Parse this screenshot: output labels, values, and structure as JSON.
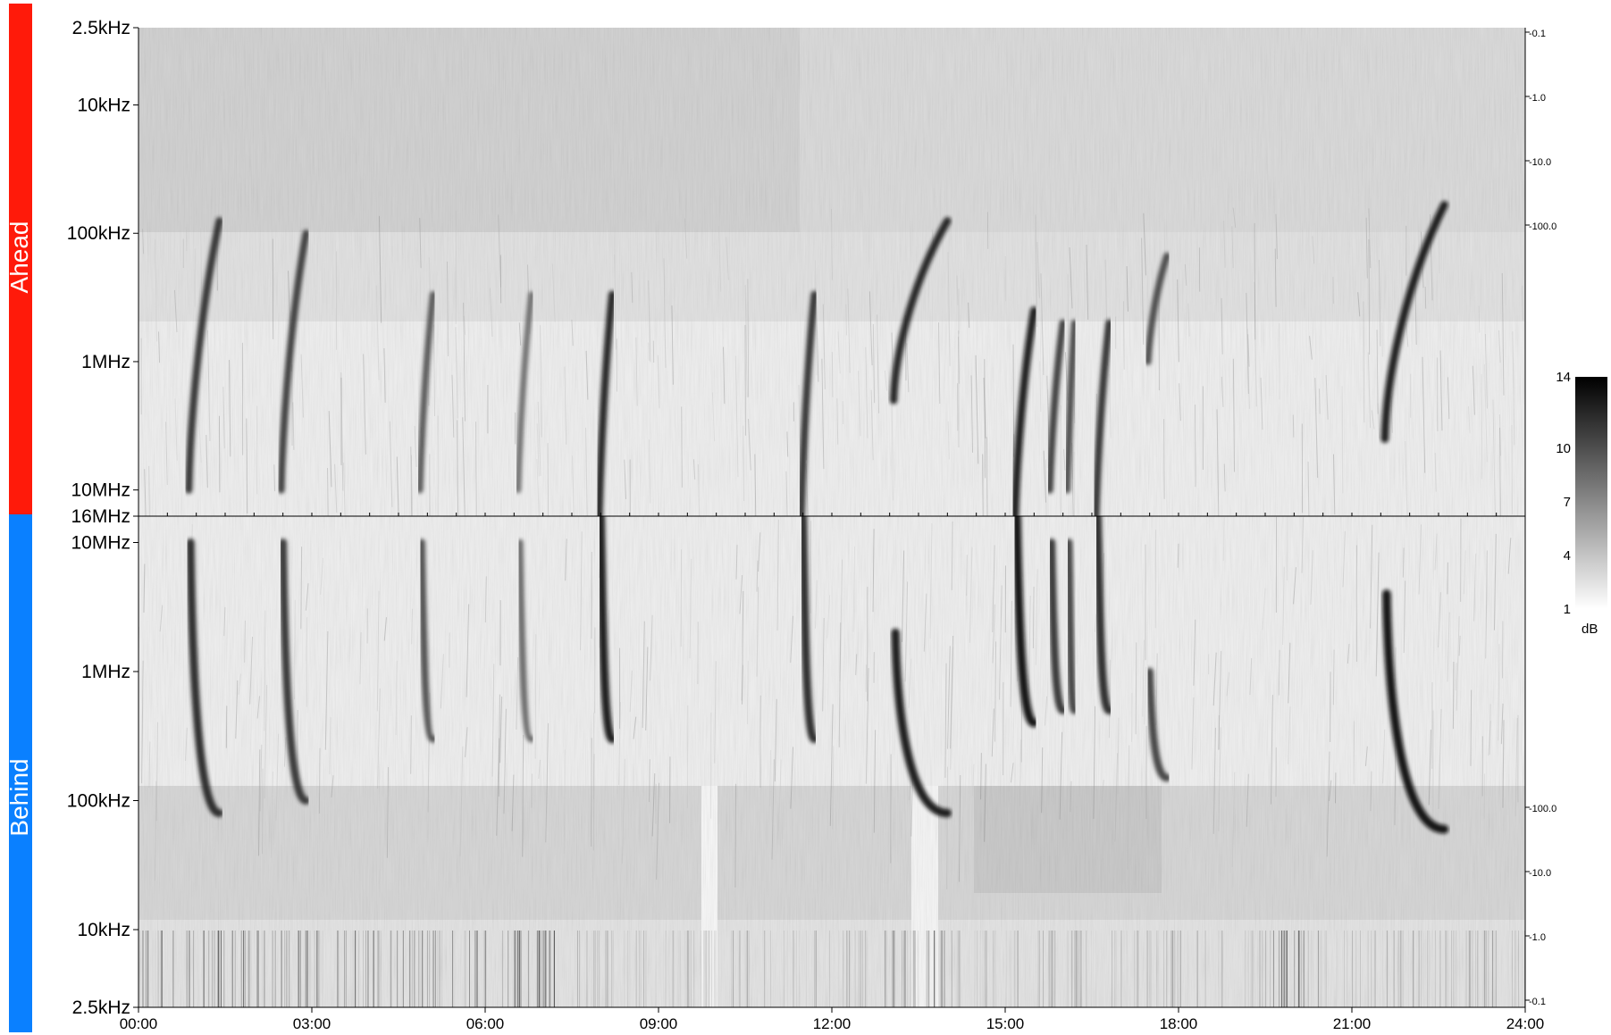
{
  "chart_data": {
    "type": "heatmap",
    "panels": [
      {
        "title": "Ahead",
        "color": "#ff1a0a",
        "y_ticks": [
          "2.5kHz",
          "10kHz",
          "100kHz",
          "1MHz",
          "10MHz",
          "16MHz"
        ],
        "y_ticks_right": [
          "-0.1",
          "-1.0",
          "-10.0",
          "-100.0"
        ]
      },
      {
        "title": "Behind",
        "color": "#0a80ff",
        "y_ticks": [
          "10MHz",
          "1MHz",
          "100kHz",
          "10kHz",
          "2.5kHz"
        ],
        "y_ticks_right": [
          "-100.0",
          "-10.0",
          "-1.0",
          "-0.1"
        ]
      }
    ],
    "x_ticks": [
      "00:00",
      "03:00",
      "06:00",
      "09:00",
      "12:00",
      "15:00",
      "18:00",
      "21:00",
      "24:00"
    ],
    "x_range_hours": [
      0,
      24
    ],
    "colorbar": {
      "ticks": [
        "14",
        "10",
        "7",
        "4",
        "1"
      ],
      "unit": "dB",
      "range": [
        1,
        14
      ],
      "cmap": [
        "#ffffff",
        "#000000"
      ]
    },
    "bursts": [
      {
        "t_start": 0.9,
        "t_end": 1.4,
        "f_start_mhz": 10,
        "f_end_mhz": 0.08,
        "intensity": 0.85
      },
      {
        "t_start": 2.5,
        "t_end": 2.9,
        "f_start_mhz": 10,
        "f_end_mhz": 0.1,
        "intensity": 0.8
      },
      {
        "t_start": 4.9,
        "t_end": 5.1,
        "f_start_mhz": 10,
        "f_end_mhz": 0.3,
        "intensity": 0.7
      },
      {
        "t_start": 6.6,
        "t_end": 6.8,
        "f_start_mhz": 10,
        "f_end_mhz": 0.3,
        "intensity": 0.6
      },
      {
        "t_start": 8.0,
        "t_end": 8.2,
        "f_start_mhz": 16,
        "f_end_mhz": 0.3,
        "intensity": 0.9
      },
      {
        "t_start": 11.5,
        "t_end": 11.7,
        "f_start_mhz": 16,
        "f_end_mhz": 0.3,
        "intensity": 0.85
      },
      {
        "t_start": 13.1,
        "t_end": 14.0,
        "f_start_mhz": 2,
        "f_end_mhz": 0.08,
        "intensity": 0.9
      },
      {
        "t_start": 15.2,
        "t_end": 15.5,
        "f_start_mhz": 16,
        "f_end_mhz": 0.4,
        "intensity": 0.95
      },
      {
        "t_start": 15.8,
        "t_end": 16.0,
        "f_start_mhz": 10,
        "f_end_mhz": 0.5,
        "intensity": 0.8
      },
      {
        "t_start": 16.1,
        "t_end": 16.2,
        "f_start_mhz": 10,
        "f_end_mhz": 0.5,
        "intensity": 0.75
      },
      {
        "t_start": 16.6,
        "t_end": 16.8,
        "f_start_mhz": 16,
        "f_end_mhz": 0.5,
        "intensity": 0.85
      },
      {
        "t_start": 17.5,
        "t_end": 17.8,
        "f_start_mhz": 1,
        "f_end_mhz": 0.15,
        "intensity": 0.75
      },
      {
        "t_start": 21.6,
        "t_end": 22.6,
        "f_start_mhz": 4,
        "f_end_mhz": 0.06,
        "intensity": 0.95
      }
    ]
  }
}
